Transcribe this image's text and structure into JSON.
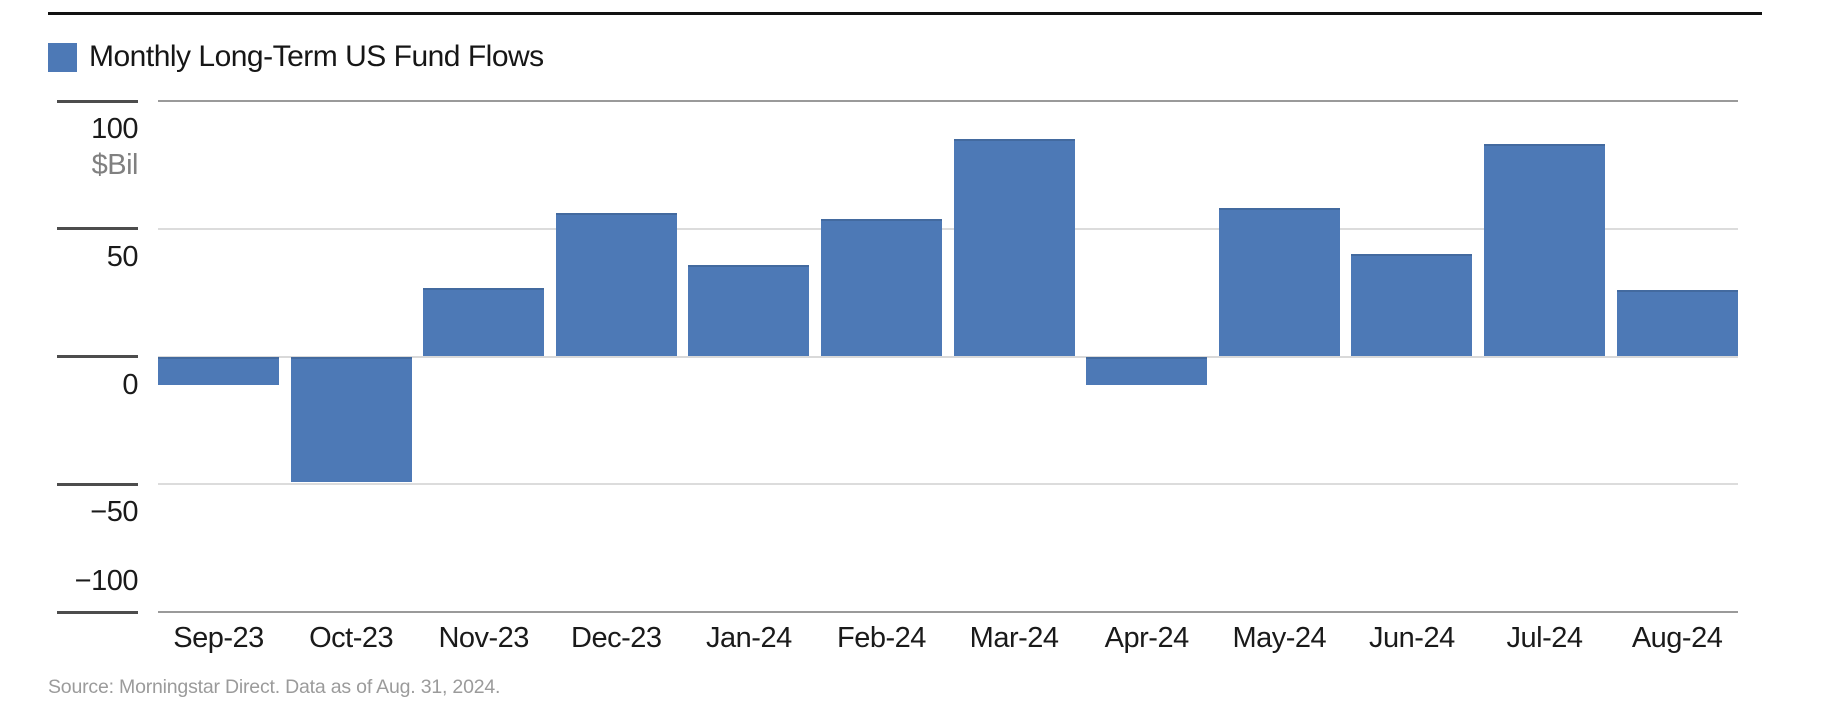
{
  "legend": {
    "label": "Monthly Long-Term US Fund Flows",
    "swatch": "blue-square"
  },
  "colors": {
    "bar": "#4d79b6",
    "tick": "#4d4d4d",
    "grid_strong": "#9a9a9a",
    "grid_light": "#dcdcdc",
    "grid_zero": "#d9d9d9",
    "top_rule": "#111111",
    "text": "#1a1a1a",
    "unit_text": "#808080",
    "source_text": "#9b9b9b"
  },
  "y_axis": {
    "unit_label": "$Bil",
    "ticks": [
      {
        "value": 100,
        "label": "100"
      },
      {
        "value": 50,
        "label": "50"
      },
      {
        "value": 0,
        "label": "0"
      },
      {
        "value": -50,
        "label": "−50"
      },
      {
        "value": -100,
        "label": "−100"
      }
    ]
  },
  "source": {
    "text": "Source: Morningstar Direct. Data as of Aug. 31, 2024."
  },
  "chart_data": {
    "type": "bar",
    "title": "Monthly Long-Term US Fund Flows",
    "categories": [
      "Sep-23",
      "Oct-23",
      "Nov-23",
      "Dec-23",
      "Jan-24",
      "Feb-24",
      "Mar-24",
      "Apr-24",
      "May-24",
      "Jun-24",
      "Jul-24",
      "Aug-24"
    ],
    "values": [
      -11,
      -49,
      27,
      56,
      36,
      54,
      85,
      -11,
      58,
      40,
      83,
      26
    ],
    "xlabel": "",
    "ylabel": "$Bil",
    "ylim": [
      -100,
      100
    ],
    "yticks": [
      100,
      50,
      0,
      -50,
      -100
    ],
    "grid": true,
    "legend_position": "top-left",
    "bar_color": "#4d79b6"
  }
}
